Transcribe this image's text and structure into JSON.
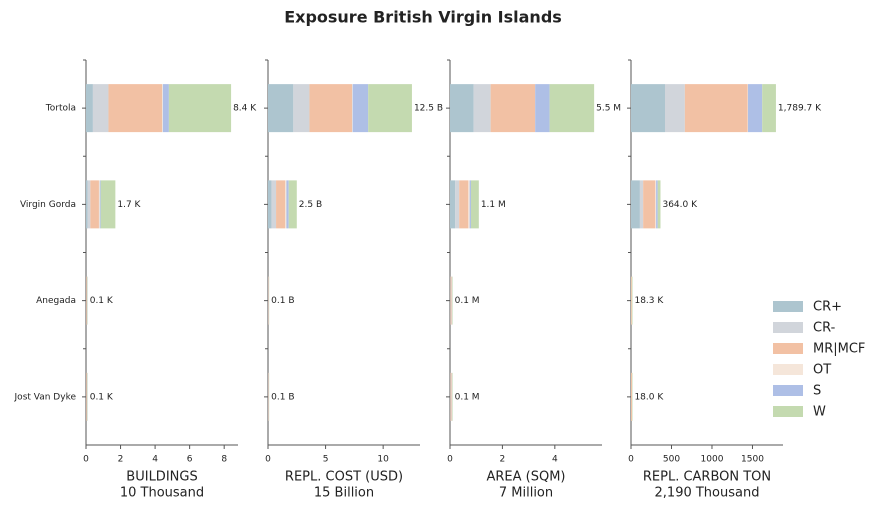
{
  "title": "Exposure British Virgin Islands",
  "legend": "right",
  "chart_data": [
    {
      "type": "barh-stacked",
      "xlabel": "BUILDINGS",
      "xunit": "10 Thousand",
      "categories": [
        "Tortola",
        "Virgin Gorda",
        "Anegada",
        "Jost Van Dyke"
      ],
      "xlim": [
        0,
        8.8
      ],
      "xticks": [
        0,
        2,
        4,
        6,
        8
      ],
      "series": [
        {
          "name": "CR+",
          "color": "#adc5cf",
          "values": [
            0.4,
            0.1,
            0.01,
            0.01
          ]
        },
        {
          "name": "CR-",
          "color": "#d1d5db",
          "values": [
            0.9,
            0.15,
            0.01,
            0.01
          ]
        },
        {
          "name": "MR|MCF",
          "color": "#f2c1a4",
          "values": [
            3.1,
            0.5,
            0.04,
            0.04
          ]
        },
        {
          "name": "OT",
          "color": "#f5e6da",
          "values": [
            0.05,
            0.05,
            0.01,
            0.01
          ]
        },
        {
          "name": "S",
          "color": "#aebfe6",
          "values": [
            0.35,
            0.05,
            0.01,
            0.01
          ]
        },
        {
          "name": "W",
          "color": "#c4dab0",
          "values": [
            3.6,
            0.85,
            0.02,
            0.02
          ]
        }
      ],
      "totals": {
        "values": [
          8.4,
          1.7,
          0.1,
          0.1
        ],
        "value_labels": [
          "8.4 K",
          "1.7 K",
          "0.1 K",
          "0.1 K"
        ]
      }
    },
    {
      "type": "barh-stacked",
      "xlabel": "REPL. COST (USD)",
      "xunit": "15 Billion",
      "categories": [
        "Tortola",
        "Virgin Gorda",
        "Anegada",
        "Jost Van Dyke"
      ],
      "xlim": [
        0,
        13.2
      ],
      "xticks": [
        0,
        5,
        10
      ],
      "series": [
        {
          "name": "CR+",
          "color": "#adc5cf",
          "values": [
            2.2,
            0.3,
            0.01,
            0.01
          ]
        },
        {
          "name": "CR-",
          "color": "#d1d5db",
          "values": [
            1.4,
            0.4,
            0.01,
            0.01
          ]
        },
        {
          "name": "MR|MCF",
          "color": "#f2c1a4",
          "values": [
            3.7,
            0.8,
            0.04,
            0.04
          ]
        },
        {
          "name": "OT",
          "color": "#f5e6da",
          "values": [
            0.05,
            0.1,
            0.01,
            0.01
          ]
        },
        {
          "name": "S",
          "color": "#aebfe6",
          "values": [
            1.35,
            0.2,
            0.01,
            0.01
          ]
        },
        {
          "name": "W",
          "color": "#c4dab0",
          "values": [
            3.8,
            0.7,
            0.02,
            0.02
          ]
        }
      ],
      "totals": {
        "values": [
          12.5,
          2.5,
          0.1,
          0.1
        ],
        "value_labels": [
          "12.5 B",
          "2.5 B",
          "0.1 B",
          "0.1 B"
        ]
      }
    },
    {
      "type": "barh-stacked",
      "xlabel": "AREA (SQM)",
      "xunit": "7 Million",
      "categories": [
        "Tortola",
        "Virgin Gorda",
        "Anegada",
        "Jost Van Dyke"
      ],
      "xlim": [
        0,
        5.8
      ],
      "xticks": [
        0,
        2,
        4
      ],
      "series": [
        {
          "name": "CR+",
          "color": "#adc5cf",
          "values": [
            0.9,
            0.2,
            0.01,
            0.01
          ]
        },
        {
          "name": "CR-",
          "color": "#d1d5db",
          "values": [
            0.65,
            0.15,
            0.01,
            0.01
          ]
        },
        {
          "name": "MR|MCF",
          "color": "#f2c1a4",
          "values": [
            1.7,
            0.35,
            0.04,
            0.04
          ]
        },
        {
          "name": "OT",
          "color": "#f5e6da",
          "values": [
            0.0,
            0.05,
            0.01,
            0.01
          ]
        },
        {
          "name": "S",
          "color": "#aebfe6",
          "values": [
            0.55,
            0.05,
            0.01,
            0.01
          ]
        },
        {
          "name": "W",
          "color": "#c4dab0",
          "values": [
            1.7,
            0.3,
            0.02,
            0.02
          ]
        }
      ],
      "totals": {
        "values": [
          5.5,
          1.1,
          0.1,
          0.1
        ],
        "value_labels": [
          "5.5 M",
          "1.1 M",
          "0.1 M",
          "0.1 M"
        ]
      }
    },
    {
      "type": "barh-stacked",
      "xlabel": "REPL. CARBON TON",
      "xunit": "2,190 Thousand",
      "categories": [
        "Tortola",
        "Virgin Gorda",
        "Anegada",
        "Jost Van Dyke"
      ],
      "xlim": [
        0,
        1877
      ],
      "xticks": [
        0,
        500,
        1000,
        1500
      ],
      "series": [
        {
          "name": "CR+",
          "color": "#adc5cf",
          "values": [
            420,
            110,
            0,
            0
          ]
        },
        {
          "name": "CR-",
          "color": "#d1d5db",
          "values": [
            245,
            40,
            0,
            0
          ]
        },
        {
          "name": "MR|MCF",
          "color": "#f2c1a4",
          "values": [
            775,
            150,
            10,
            12
          ]
        },
        {
          "name": "OT",
          "color": "#f5e6da",
          "values": [
            5,
            10,
            0,
            0
          ]
        },
        {
          "name": "S",
          "color": "#aebfe6",
          "values": [
            175,
            20,
            0,
            0
          ]
        },
        {
          "name": "W",
          "color": "#c4dab0",
          "values": [
            169.7,
            34,
            8.3,
            6
          ]
        }
      ],
      "totals": {
        "values": [
          1789.7,
          364.0,
          18.3,
          18.0
        ],
        "value_labels": [
          "1,789.7 K",
          "364.0 K",
          "18.3 K",
          "18.0 K"
        ]
      }
    }
  ]
}
